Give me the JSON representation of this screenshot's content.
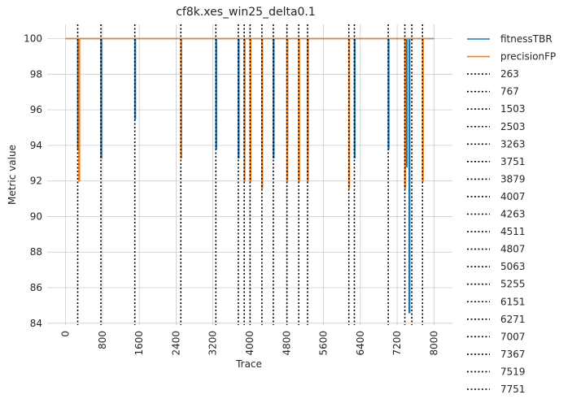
{
  "chart_data": {
    "type": "line",
    "title": "cf8k.xes_win25_delta0.1",
    "xlabel": "Trace",
    "ylabel": "Metric value",
    "xlim": [
      -400,
      8400
    ],
    "ylim": [
      83.9,
      100.8
    ],
    "xticks": [
      0,
      800,
      1600,
      2400,
      3200,
      4000,
      4800,
      5600,
      6400,
      7200,
      8000
    ],
    "yticks": [
      84,
      86,
      88,
      90,
      92,
      94,
      96,
      98,
      100
    ],
    "grid": true,
    "legend_position": "outside-right",
    "x_start": 0,
    "x_end": 8000,
    "baseline": 100,
    "series": [
      {
        "name": "fitnessTBR",
        "color": "#1f77b4",
        "dips": [
          {
            "x": 263,
            "y": 93.8
          },
          {
            "x": 767,
            "y": 93.3
          },
          {
            "x": 1503,
            "y": 95.5
          },
          {
            "x": 2503,
            "y": 93.3
          },
          {
            "x": 3263,
            "y": 93.8
          },
          {
            "x": 3751,
            "y": 93.3
          },
          {
            "x": 3879,
            "y": 93.8
          },
          {
            "x": 4263,
            "y": 94.0
          },
          {
            "x": 4511,
            "y": 93.3
          },
          {
            "x": 4807,
            "y": 94.0
          },
          {
            "x": 5255,
            "y": 93.7
          },
          {
            "x": 6271,
            "y": 93.3
          },
          {
            "x": 7007,
            "y": 93.8
          },
          {
            "x": 7400,
            "y": 92.8
          },
          {
            "x": 7460,
            "y": 84.6
          }
        ]
      },
      {
        "name": "precisionFP",
        "color": "#ff7f0e",
        "dips": [
          {
            "x": 290,
            "y": 92.0
          },
          {
            "x": 2503,
            "y": 93.3
          },
          {
            "x": 3879,
            "y": 92.0
          },
          {
            "x": 4007,
            "y": 92.0
          },
          {
            "x": 4263,
            "y": 91.6
          },
          {
            "x": 4807,
            "y": 92.0
          },
          {
            "x": 5063,
            "y": 92.0
          },
          {
            "x": 5255,
            "y": 92.0
          },
          {
            "x": 6151,
            "y": 91.6
          },
          {
            "x": 7367,
            "y": 91.6
          },
          {
            "x": 7751,
            "y": 92.0
          }
        ]
      }
    ],
    "vlines": [
      263,
      767,
      1503,
      2503,
      3263,
      3751,
      3879,
      4007,
      4263,
      4511,
      4807,
      5063,
      5255,
      6151,
      6271,
      7007,
      7367,
      7519,
      7751
    ],
    "vline_labels": [
      "263",
      "767",
      "1503",
      "2503",
      "3263",
      "3751",
      "3879",
      "4007",
      "4263",
      "4511",
      "4807",
      "5063",
      "5255",
      "6151",
      "6271",
      "7007",
      "7367",
      "7519",
      "7751"
    ],
    "vline_color": "#000000"
  }
}
